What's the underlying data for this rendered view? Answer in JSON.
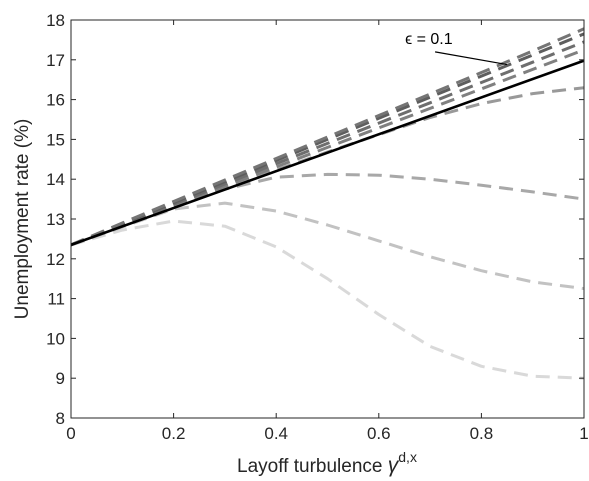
{
  "chart_data": {
    "type": "line",
    "xlabel": "Layoff turbulence",
    "xlabel_symbol": "γ",
    "xlabel_sup": "d,x",
    "ylabel": "Unemployment rate (%)",
    "xlim": [
      0,
      1
    ],
    "ylim": [
      8,
      18
    ],
    "xticks": [
      0,
      0.2,
      0.4,
      0.6,
      0.8,
      1
    ],
    "xtick_labels": [
      "0",
      "0.2",
      "0.4",
      "0.6",
      "0.8",
      "1"
    ],
    "yticks": [
      8,
      9,
      10,
      11,
      12,
      13,
      14,
      15,
      16,
      17,
      18
    ],
    "ytick_labels": [
      "8",
      "9",
      "10",
      "11",
      "12",
      "13",
      "14",
      "15",
      "16",
      "17",
      "18"
    ],
    "grid": false,
    "annotation": {
      "text": "ϵ = 0.1",
      "x": 0.7,
      "y": 17.25,
      "arrow_to": {
        "x": 0.85,
        "y": 16.88
      }
    },
    "series": [
      {
        "style": "dashed",
        "color": "#d9d9d9",
        "x": [
          0,
          0.1,
          0.2,
          0.3,
          0.4,
          0.5,
          0.6,
          0.7,
          0.8,
          0.9,
          1.0
        ],
        "y": [
          12.35,
          12.72,
          12.95,
          12.82,
          12.3,
          11.5,
          10.6,
          9.8,
          9.3,
          9.05,
          9.0
        ]
      },
      {
        "style": "dashed",
        "color": "#c2c2c2",
        "x": [
          0,
          0.1,
          0.2,
          0.3,
          0.4,
          0.5,
          0.6,
          0.7,
          0.8,
          0.9,
          1.0
        ],
        "y": [
          12.35,
          12.8,
          13.25,
          13.4,
          13.2,
          12.85,
          12.45,
          12.05,
          11.7,
          11.42,
          11.25
        ]
      },
      {
        "style": "dashed",
        "color": "#a8a8a8",
        "x": [
          0,
          0.1,
          0.2,
          0.3,
          0.4,
          0.5,
          0.6,
          0.7,
          0.8,
          0.9,
          1.0
        ],
        "y": [
          12.35,
          12.82,
          13.3,
          13.75,
          14.05,
          14.12,
          14.1,
          14.0,
          13.85,
          13.68,
          13.5
        ]
      },
      {
        "style": "dashed",
        "color": "#999999",
        "x": [
          0,
          0.1,
          0.2,
          0.3,
          0.4,
          0.5,
          0.6,
          0.7,
          0.8,
          0.9,
          1.0
        ],
        "y": [
          12.35,
          12.82,
          13.3,
          13.77,
          14.23,
          14.68,
          15.12,
          15.55,
          15.9,
          16.15,
          16.3
        ]
      },
      {
        "style": "dashed",
        "color": "#808080",
        "x": [
          0,
          0.1,
          0.2,
          0.3,
          0.4,
          0.5,
          0.6,
          0.7,
          0.8,
          0.9,
          1.0
        ],
        "y": [
          12.35,
          12.84,
          13.33,
          13.82,
          14.31,
          14.8,
          15.29,
          15.78,
          16.27,
          16.76,
          17.25
        ]
      },
      {
        "style": "dashed",
        "color": "#6e6e6e",
        "x": [
          0,
          0.1,
          0.2,
          0.3,
          0.4,
          0.5,
          0.6,
          0.7,
          0.8,
          0.9,
          1.0
        ],
        "y": [
          12.35,
          12.86,
          13.37,
          13.88,
          14.39,
          14.9,
          15.41,
          15.92,
          16.43,
          16.94,
          17.45
        ]
      },
      {
        "style": "dashed",
        "color": "#5e5e5e",
        "x": [
          0,
          0.1,
          0.2,
          0.3,
          0.4,
          0.5,
          0.6,
          0.7,
          0.8,
          0.9,
          1.0
        ],
        "y": [
          12.35,
          12.88,
          13.41,
          13.94,
          14.47,
          15.0,
          15.53,
          16.06,
          16.59,
          17.12,
          17.65
        ]
      },
      {
        "style": "dashed",
        "color": "#757575",
        "x": [
          0,
          0.1,
          0.2,
          0.3,
          0.4,
          0.5,
          0.6,
          0.7,
          0.8,
          0.9,
          1.0
        ],
        "y": [
          12.35,
          12.9,
          13.44,
          13.98,
          14.52,
          15.06,
          15.6,
          16.14,
          16.68,
          17.22,
          17.78
        ]
      },
      {
        "style": "solid",
        "color": "#000000",
        "x": [
          0,
          1
        ],
        "y": [
          12.35,
          16.98
        ]
      }
    ]
  }
}
